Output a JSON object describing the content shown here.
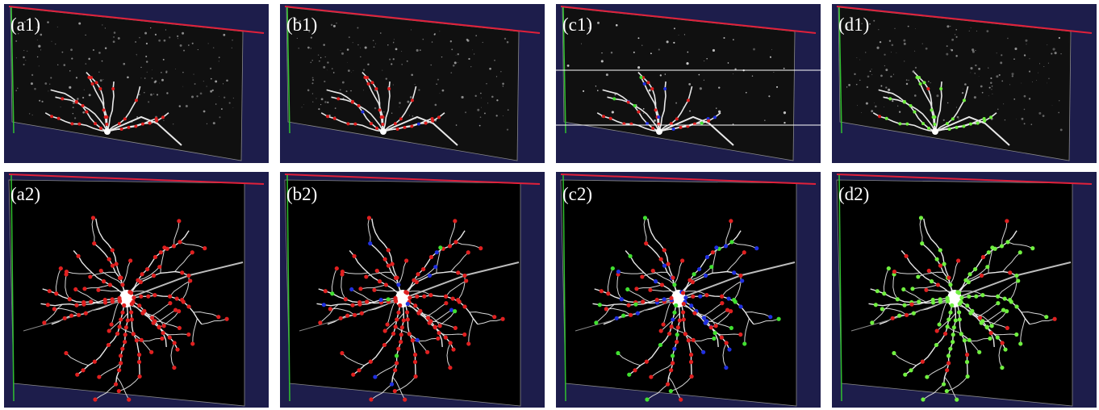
{
  "panels": [
    {
      "label": "(a1)"
    },
    {
      "label": "(b1)"
    },
    {
      "label": "(c1)"
    },
    {
      "label": "(d1)"
    },
    {
      "label": "(a2)"
    },
    {
      "label": "(b2)"
    },
    {
      "label": "(c2)"
    },
    {
      "label": "(d2)"
    }
  ]
}
